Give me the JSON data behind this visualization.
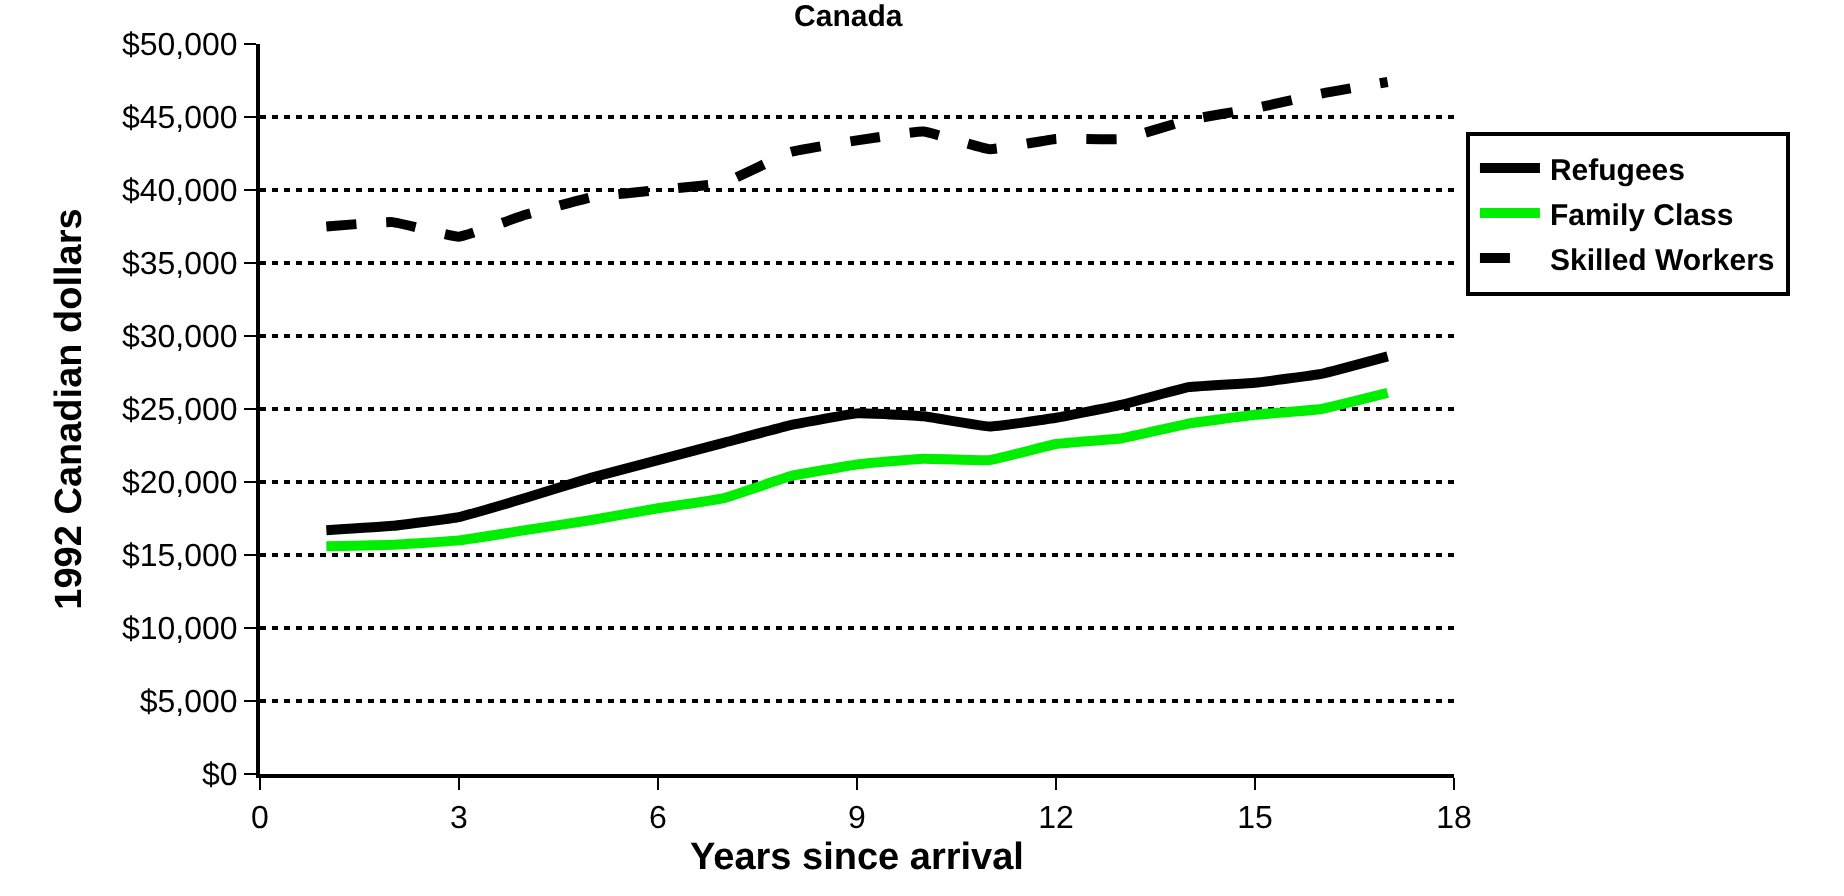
{
  "chart_data": {
    "type": "line",
    "title": "Canada",
    "xlabel": "Years since arrival",
    "ylabel": "1992 Canadian dollars",
    "x": [
      1,
      2,
      3,
      4,
      5,
      6,
      7,
      8,
      9,
      10,
      11,
      12,
      13,
      14,
      15,
      16,
      17
    ],
    "series": [
      {
        "name": "Refugees",
        "color": "#000000",
        "line_style": "solid",
        "values": [
          16700,
          17000,
          17600,
          18900,
          20300,
          21500,
          22700,
          23900,
          24700,
          24500,
          23800,
          24400,
          25300,
          26500,
          26800,
          27400,
          28600
        ]
      },
      {
        "name": "Family Class",
        "color": "#00ee00",
        "line_style": "solid",
        "values": [
          15600,
          15700,
          16000,
          16700,
          17400,
          18200,
          18900,
          20400,
          21200,
          21600,
          21500,
          22600,
          23000,
          24000,
          24600,
          25000,
          26100
        ]
      },
      {
        "name": "Skilled Workers",
        "color": "#000000",
        "line_style": "dashed",
        "values": [
          37500,
          37800,
          36800,
          38300,
          39500,
          40000,
          40500,
          42600,
          43400,
          44000,
          42800,
          43500,
          43500,
          44800,
          45600,
          46600,
          47400
        ]
      }
    ],
    "xlim": [
      0,
      18
    ],
    "xticks": [
      0,
      3,
      6,
      9,
      12,
      15,
      18
    ],
    "ylim": [
      0,
      50000
    ],
    "yticks": [
      {
        "value": 0,
        "label": "$0"
      },
      {
        "value": 5000,
        "label": "$5,000"
      },
      {
        "value": 10000,
        "label": "$10,000"
      },
      {
        "value": 15000,
        "label": "$15,000"
      },
      {
        "value": 20000,
        "label": "$20,000"
      },
      {
        "value": 25000,
        "label": "$25,000"
      },
      {
        "value": 30000,
        "label": "$30,000"
      },
      {
        "value": 35000,
        "label": "$35,000"
      },
      {
        "value": 40000,
        "label": "$40,000"
      },
      {
        "value": 45000,
        "label": "$45,000"
      },
      {
        "value": 50000,
        "label": "$50,000"
      }
    ],
    "grid": "y",
    "legend": "right",
    "marker": "none"
  }
}
